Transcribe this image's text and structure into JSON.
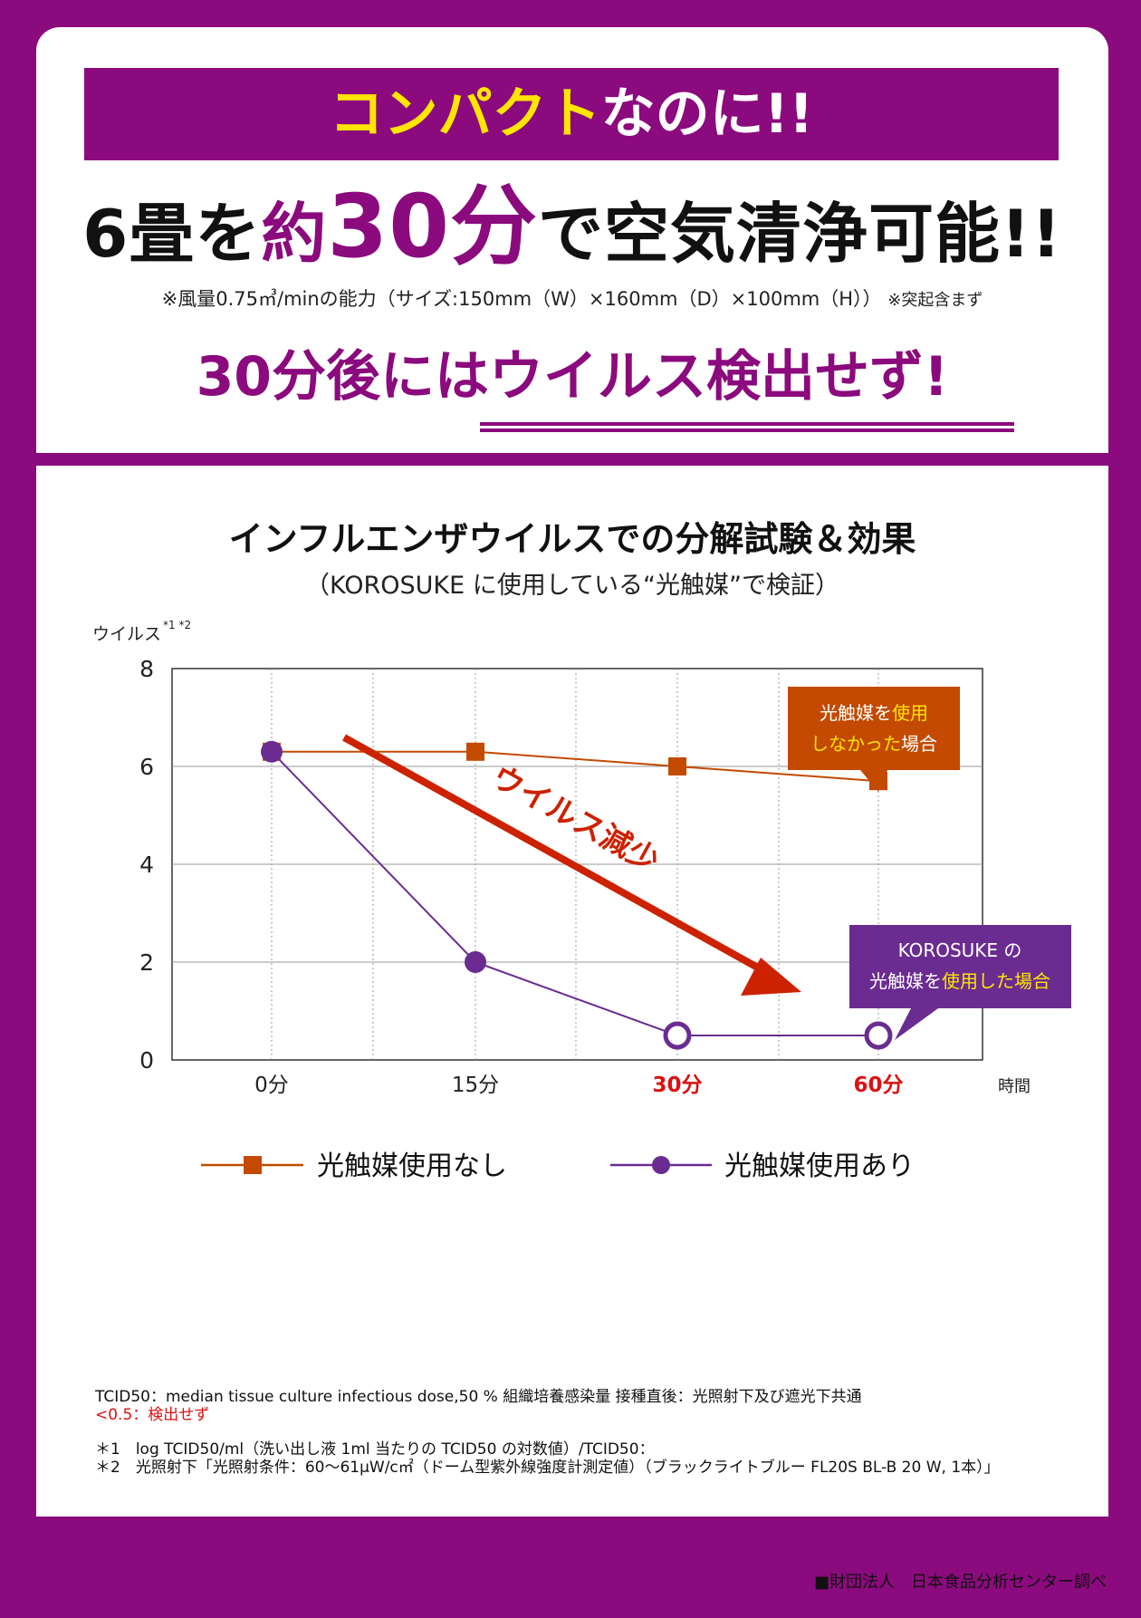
{
  "header": {
    "banner_highlight": "コンパクト",
    "banner_rest": "なのに!!",
    "headline_a": "6畳を",
    "headline_b": "約",
    "headline_c": "30分",
    "headline_d": "で空気清浄可能!!",
    "note_main": "※風量0.75㎥/minの能力（サイズ:150mm（W）×160mm（D）×100mm（H））",
    "note_small": "※突起含まず",
    "headline3": "30分後にはウイルス検出せず!"
  },
  "chart_data": {
    "type": "line",
    "title": "インフルエンザウイルスでの分解試験＆効果",
    "subtitle": "（KOROSUKE に使用している“光触媒”で検証）",
    "ylabel": "ウイルス",
    "ylabel_sup": "*1 *2",
    "xlabel": "時間",
    "ylim": [
      0,
      8
    ],
    "yticks": [
      "0",
      "2",
      "4",
      "6",
      "8"
    ],
    "categories": [
      "0分",
      "15分",
      "30分",
      "60分"
    ],
    "series": [
      {
        "name": "光触媒使用なし",
        "color": "#c34a00",
        "marker": "square",
        "values": [
          6.3,
          6.3,
          6.0,
          5.7
        ]
      },
      {
        "name": "光触媒使用あり",
        "color": "#6a2c91",
        "marker": "circle",
        "values": [
          6.3,
          2.0,
          0.5,
          0.5
        ]
      }
    ],
    "arrow_label": "ウイルス減少",
    "callout_orange": {
      "l1a": "光触媒を",
      "l1b": "使用",
      "l2a": "しなかった",
      "l2b": "場合"
    },
    "callout_purple": {
      "l1": "KOROSUKE の",
      "l2a": "光触媒を",
      "l2b": "使用した場合"
    }
  },
  "footnotes": {
    "line1": "TCID50：median tissue culture infectious dose,50 % 組織培養感染量 接種直後：光照射下及び遮光下共通",
    "line2": "<0.5：検出せず",
    "line3": "＊1　log TCID50/ml（洗い出し液 1ml 当たりの TCID50 の対数値）/TCID50：",
    "line4": "＊2　光照射下「光照射条件：60～61μW/c㎡（ドーム型紫外線強度計測定値）（ブラックライトブルー FL20S BL-B 20 W, 1本）」"
  },
  "source": "■財団法人　日本食品分析センター調べ",
  "colors": {
    "brand": "#8b0a7d",
    "orange": "#c34a00",
    "purple": "#6a2c91",
    "arrow": "#cc2200"
  }
}
